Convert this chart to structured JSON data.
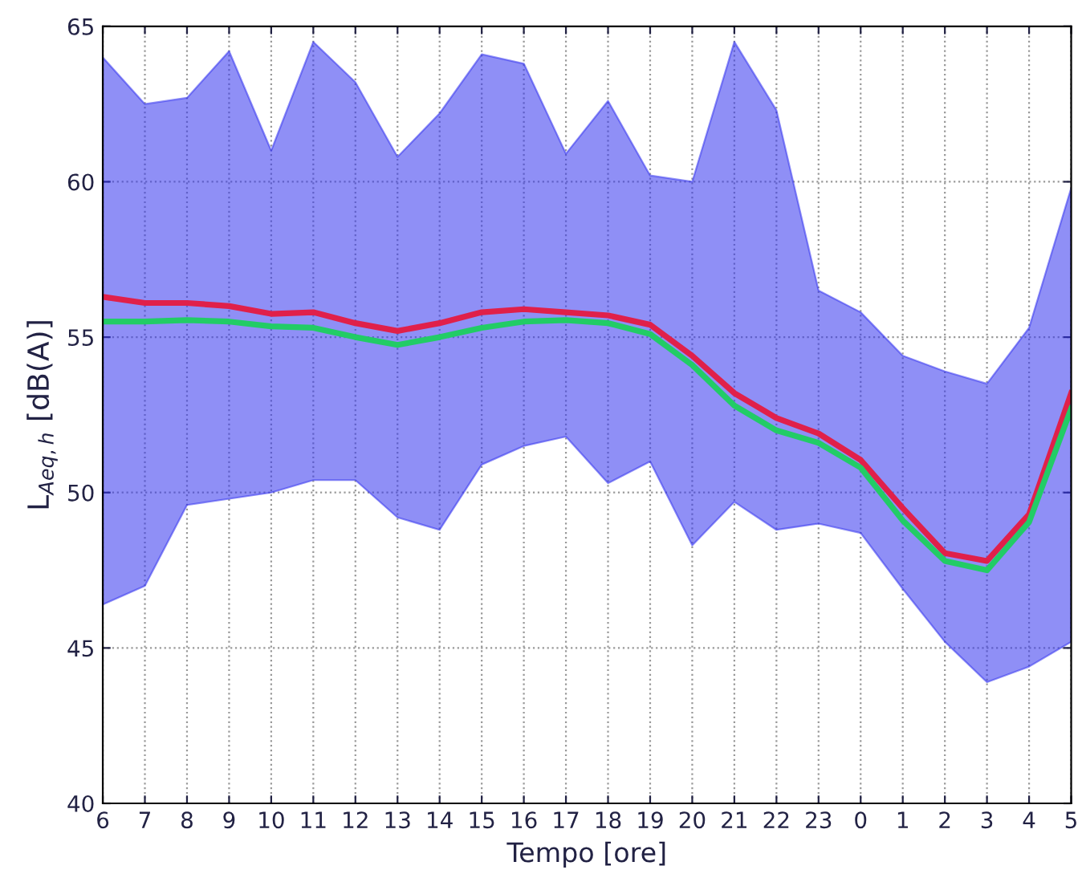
{
  "chart_data": {
    "type": "line",
    "xlabel": "Tempo [ore]",
    "ylabel": "L$_{Aeq,h}$ [dB(A)]",
    "categories": [
      "6",
      "7",
      "8",
      "9",
      "10",
      "11",
      "12",
      "13",
      "14",
      "15",
      "16",
      "17",
      "18",
      "19",
      "20",
      "21",
      "22",
      "23",
      "0",
      "1",
      "2",
      "3",
      "4",
      "5"
    ],
    "ylim": [
      40,
      65
    ],
    "yticks": [
      40,
      45,
      50,
      55,
      60,
      65
    ],
    "grid": true,
    "marker": "none",
    "line_style": "solid",
    "series": [
      {
        "color": "#3333ee",
        "values": [
          null,
          null,
          null,
          null,
          null,
          null,
          null,
          null,
          null,
          null,
          null,
          null,
          null,
          null,
          null,
          null,
          null,
          null,
          null,
          null,
          null,
          null,
          null,
          null
        ],
        "lower": [
          46.4,
          47.0,
          49.6,
          49.8,
          50.0,
          50.4,
          50.4,
          49.2,
          48.8,
          50.9,
          51.5,
          51.8,
          50.3,
          51.0,
          48.3,
          49.7,
          48.8,
          49.0,
          48.7,
          46.9,
          45.2,
          43.9,
          44.4,
          45.2
        ],
        "upper": [
          64.0,
          62.5,
          62.7,
          64.2,
          61.0,
          64.5,
          63.2,
          60.8,
          62.2,
          64.1,
          63.8,
          60.9,
          62.6,
          60.2,
          60.0,
          64.5,
          62.3,
          56.5,
          55.8,
          54.4,
          53.9,
          53.5,
          55.3,
          59.8
        ]
      },
      {
        "color": "#e0204a",
        "values": [
          56.3,
          56.1,
          56.1,
          56.0,
          55.75,
          55.8,
          55.45,
          55.2,
          55.45,
          55.8,
          55.9,
          55.8,
          55.7,
          55.4,
          54.4,
          53.2,
          52.4,
          51.9,
          51.05,
          49.5,
          48.05,
          47.8,
          49.3,
          53.2
        ]
      },
      {
        "color": "#22cc66",
        "values": [
          55.5,
          55.5,
          55.55,
          55.5,
          55.35,
          55.3,
          55.0,
          54.75,
          55.0,
          55.3,
          55.5,
          55.55,
          55.45,
          55.1,
          54.1,
          52.8,
          52.0,
          51.6,
          50.8,
          49.1,
          47.8,
          47.5,
          49.05,
          52.7
        ]
      }
    ]
  }
}
